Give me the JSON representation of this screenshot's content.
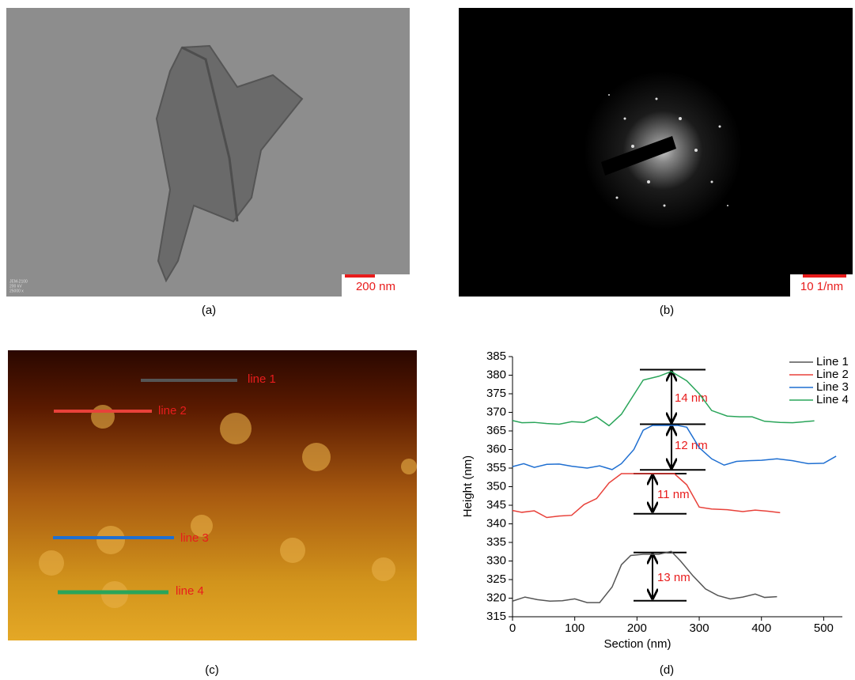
{
  "panels": {
    "a": {
      "label": "(a)",
      "scale_bar": "200 nm",
      "info": [
        "JEM-2100",
        "200 kV",
        "25000 x"
      ]
    },
    "b": {
      "label": "(b)",
      "scale_bar": "10 1/nm"
    },
    "c": {
      "label": "(c)",
      "lines": [
        "line 1",
        "line 2",
        "line 3",
        "line 4"
      ]
    },
    "d": {
      "label": "(d)"
    }
  },
  "chart_data": {
    "type": "line",
    "x_label": "Section (nm)",
    "y_label": "Height (nm)",
    "xlim": [
      0,
      530
    ],
    "ylim": [
      315,
      385
    ],
    "xticks": [
      0,
      100,
      200,
      300,
      400,
      500
    ],
    "yticks": [
      315,
      320,
      325,
      330,
      335,
      340,
      345,
      350,
      355,
      360,
      365,
      370,
      375,
      380,
      385
    ],
    "legend": "top-right",
    "annotations": [
      "14 nm",
      "12 nm",
      "11 nm",
      "13 nm"
    ],
    "series": [
      {
        "name": "Line 1",
        "color": "#555555",
        "x": [
          0,
          20,
          40,
          60,
          80,
          100,
          120,
          140,
          160,
          175,
          190,
          210,
          235,
          255,
          270,
          290,
          310,
          330,
          350,
          370,
          390,
          405,
          425
        ],
        "values": [
          319.2,
          320.3,
          319.6,
          319.2,
          319.3,
          319.8,
          318.8,
          318.8,
          323,
          329,
          331.5,
          331.8,
          331.8,
          332.6,
          330,
          326,
          322.5,
          320.7,
          319.8,
          320.3,
          321.1,
          320.2,
          320.4
        ]
      },
      {
        "name": "Line 2",
        "color": "#e8413a",
        "x": [
          0,
          15,
          35,
          55,
          75,
          95,
          115,
          135,
          155,
          175,
          200,
          230,
          260,
          280,
          300,
          320,
          345,
          370,
          390,
          410,
          430
        ],
        "values": [
          343.6,
          343.1,
          343.5,
          341.7,
          342.1,
          342.3,
          345.2,
          346.8,
          351,
          353.5,
          353.5,
          353.5,
          353.5,
          350.5,
          344.5,
          344,
          343.8,
          343.3,
          343.7,
          343.4,
          343
        ]
      },
      {
        "name": "Line 3",
        "color": "#1f6fd1",
        "x": [
          0,
          18,
          35,
          55,
          75,
          95,
          120,
          140,
          160,
          175,
          195,
          210,
          225,
          245,
          265,
          280,
          300,
          320,
          340,
          360,
          380,
          400,
          425,
          450,
          475,
          500,
          520
        ],
        "values": [
          355.4,
          356.2,
          355.2,
          356,
          356.1,
          355.5,
          355,
          355.6,
          354.6,
          356.2,
          360,
          365.2,
          366.5,
          366.5,
          366.5,
          366,
          360.5,
          357.5,
          355.8,
          356.8,
          357,
          357.1,
          357.5,
          357,
          356.2,
          356.3,
          358.2
        ]
      },
      {
        "name": "Line 4",
        "color": "#2aa55a",
        "x": [
          0,
          15,
          35,
          55,
          75,
          95,
          115,
          135,
          155,
          175,
          210,
          235,
          255,
          280,
          300,
          320,
          345,
          365,
          385,
          405,
          430,
          450,
          470,
          485
        ],
        "values": [
          367.8,
          367.2,
          367.3,
          367,
          366.8,
          367.5,
          367.3,
          368.8,
          366.4,
          369.5,
          378.7,
          379.7,
          381,
          378.5,
          375,
          370.5,
          369,
          368.8,
          368.8,
          367.6,
          367.3,
          367.2,
          367.5,
          367.7
        ]
      }
    ]
  }
}
